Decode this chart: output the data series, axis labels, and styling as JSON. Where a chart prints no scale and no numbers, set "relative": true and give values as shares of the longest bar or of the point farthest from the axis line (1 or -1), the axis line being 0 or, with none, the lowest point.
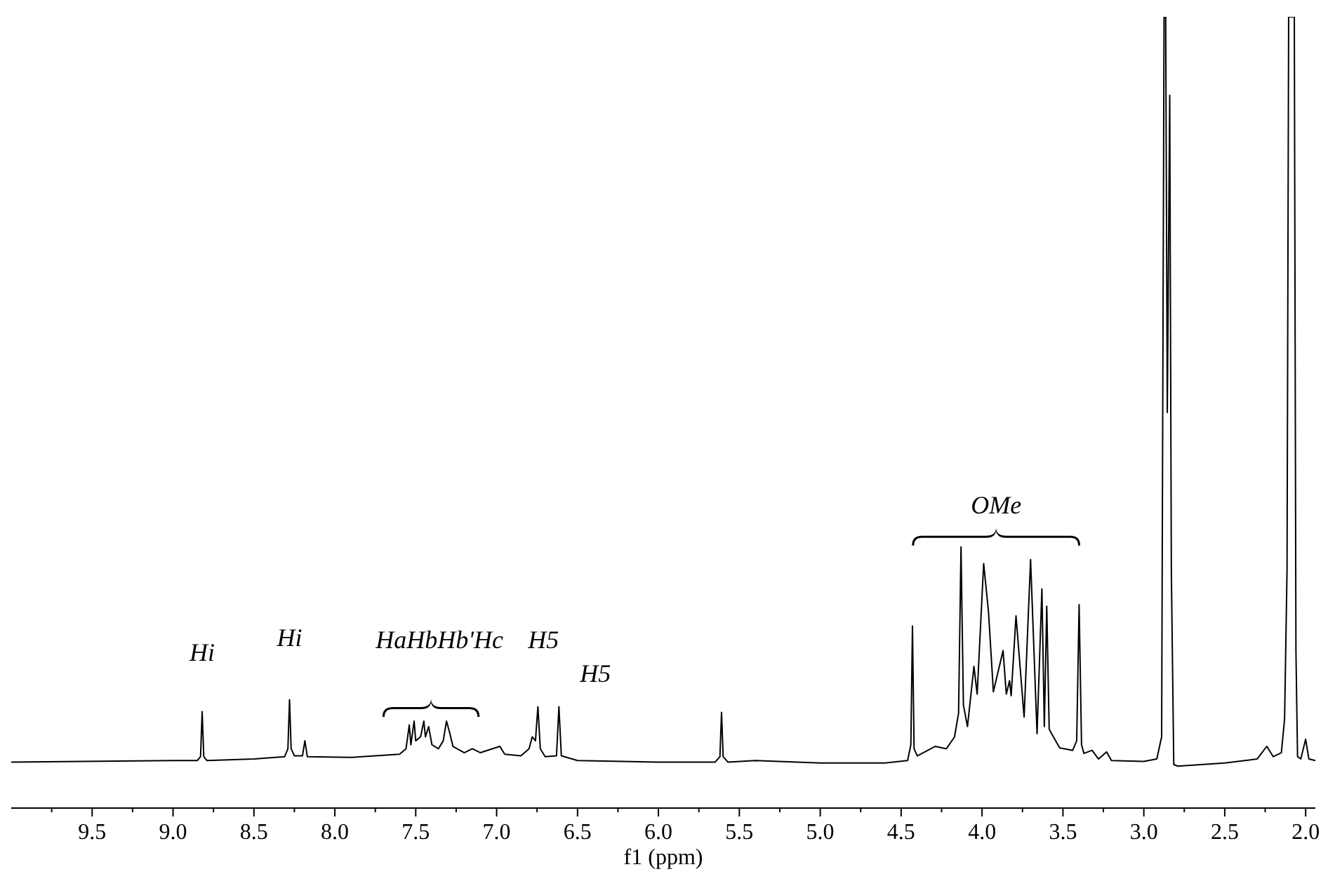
{
  "chart_data": {
    "type": "line",
    "relative": true,
    "xlabel": "f1 (ppm)",
    "xlim": [
      10.0,
      1.94
    ],
    "xticks": [
      {
        "value": 9.75,
        "label": null
      },
      {
        "value": 9.5,
        "label": "9.5"
      },
      {
        "value": 9.25,
        "label": null
      },
      {
        "value": 9.0,
        "label": "9.0"
      },
      {
        "value": 8.75,
        "label": null
      },
      {
        "value": 8.5,
        "label": "8.5"
      },
      {
        "value": 8.25,
        "label": null
      },
      {
        "value": 8.0,
        "label": "8.0"
      },
      {
        "value": 7.75,
        "label": null
      },
      {
        "value": 7.5,
        "label": "7.5"
      },
      {
        "value": 7.25,
        "label": null
      },
      {
        "value": 7.0,
        "label": "7.0"
      },
      {
        "value": 6.75,
        "label": null
      },
      {
        "value": 6.5,
        "label": "6.5"
      },
      {
        "value": 6.25,
        "label": null
      },
      {
        "value": 6.0,
        "label": "6.0"
      },
      {
        "value": 5.75,
        "label": null
      },
      {
        "value": 5.5,
        "label": "5.5"
      },
      {
        "value": 5.25,
        "label": null
      },
      {
        "value": 5.0,
        "label": "5.0"
      },
      {
        "value": 4.75,
        "label": null
      },
      {
        "value": 4.5,
        "label": "4.5"
      },
      {
        "value": 4.25,
        "label": null
      },
      {
        "value": 4.0,
        "label": "4.0"
      },
      {
        "value": 3.75,
        "label": null
      },
      {
        "value": 3.5,
        "label": "3.5"
      },
      {
        "value": 3.25,
        "label": null
      },
      {
        "value": 3.0,
        "label": "3.0"
      },
      {
        "value": 2.75,
        "label": null
      },
      {
        "value": 2.5,
        "label": "2.5"
      },
      {
        "value": 2.25,
        "label": null
      },
      {
        "value": 2.0,
        "label": "2.0"
      }
    ],
    "series": [
      {
        "color": "#000000",
        "x": [
          10.0,
          9.0,
          8.85,
          8.83,
          8.82,
          8.81,
          8.79,
          8.5,
          8.31,
          8.29,
          8.28,
          8.27,
          8.25,
          8.2,
          8.185,
          8.17,
          7.9,
          7.6,
          7.56,
          7.54,
          7.53,
          7.51,
          7.5,
          7.47,
          7.45,
          7.44,
          7.42,
          7.4,
          7.36,
          7.33,
          7.31,
          7.29,
          7.27,
          7.2,
          7.15,
          7.1,
          6.98,
          6.95,
          6.85,
          6.8,
          6.78,
          6.76,
          6.745,
          6.73,
          6.7,
          6.63,
          6.615,
          6.6,
          6.5,
          6.0,
          5.65,
          5.62,
          5.61,
          5.6,
          5.57,
          5.4,
          5.0,
          4.6,
          4.46,
          4.44,
          4.43,
          4.42,
          4.4,
          4.29,
          4.22,
          4.17,
          4.145,
          4.13,
          4.115,
          4.09,
          4.05,
          4.03,
          3.99,
          3.96,
          3.93,
          3.87,
          3.85,
          3.83,
          3.82,
          3.79,
          3.74,
          3.7,
          3.66,
          3.63,
          3.615,
          3.6,
          3.585,
          3.57,
          3.52,
          3.44,
          3.415,
          3.4,
          3.385,
          3.37,
          3.32,
          3.28,
          3.23,
          3.2,
          3.0,
          2.92,
          2.89,
          2.875,
          2.865,
          2.855,
          2.84,
          2.83,
          2.815,
          2.79,
          2.5,
          2.3,
          2.24,
          2.2,
          2.15,
          2.13,
          2.115,
          2.105,
          2.095,
          2.085,
          2.07,
          2.06,
          2.05,
          2.03,
          2.0,
          1.98,
          1.94
        ],
        "values": [
          0.058,
          0.06,
          0.06,
          0.065,
          0.122,
          0.065,
          0.06,
          0.062,
          0.065,
          0.075,
          0.137,
          0.075,
          0.066,
          0.066,
          0.085,
          0.065,
          0.064,
          0.068,
          0.075,
          0.105,
          0.08,
          0.11,
          0.085,
          0.09,
          0.11,
          0.09,
          0.103,
          0.08,
          0.075,
          0.085,
          0.11,
          0.095,
          0.078,
          0.07,
          0.075,
          0.07,
          0.078,
          0.068,
          0.066,
          0.075,
          0.09,
          0.085,
          0.128,
          0.075,
          0.065,
          0.066,
          0.128,
          0.066,
          0.06,
          0.058,
          0.058,
          0.065,
          0.121,
          0.065,
          0.058,
          0.06,
          0.057,
          0.057,
          0.06,
          0.08,
          0.23,
          0.075,
          0.066,
          0.078,
          0.075,
          0.09,
          0.12,
          0.33,
          0.13,
          0.103,
          0.179,
          0.144,
          0.309,
          0.248,
          0.147,
          0.199,
          0.144,
          0.161,
          0.142,
          0.243,
          0.115,
          0.314,
          0.094,
          0.277,
          0.103,
          0.255,
          0.1,
          0.094,
          0.076,
          0.073,
          0.085,
          0.257,
          0.08,
          0.069,
          0.073,
          0.062,
          0.071,
          0.06,
          0.059,
          0.062,
          0.09,
          1,
          1,
          0.5,
          0.901,
          0.3,
          0.055,
          0.053,
          0.057,
          0.062,
          0.078,
          0.065,
          0.07,
          0.113,
          0.3,
          1,
          1,
          1,
          1,
          0.2,
          0.065,
          0.062,
          0.087,
          0.062,
          0.06
        ]
      }
    ],
    "annotations": [
      {
        "text": "Hi",
        "x": 8.82,
        "y": 0.122
      },
      {
        "text": "Hi",
        "x": 8.28,
        "y": 0.137
      },
      {
        "text": "HaHbHb'Hc",
        "x": 7.31,
        "y": 0.11
      },
      {
        "text": "H5",
        "x": 6.745,
        "y": 0.128
      },
      {
        "text": "H5",
        "x": 6.615,
        "y": 0.128
      },
      {
        "text": "OMe",
        "x": 4.13,
        "y": 0.33
      }
    ]
  }
}
